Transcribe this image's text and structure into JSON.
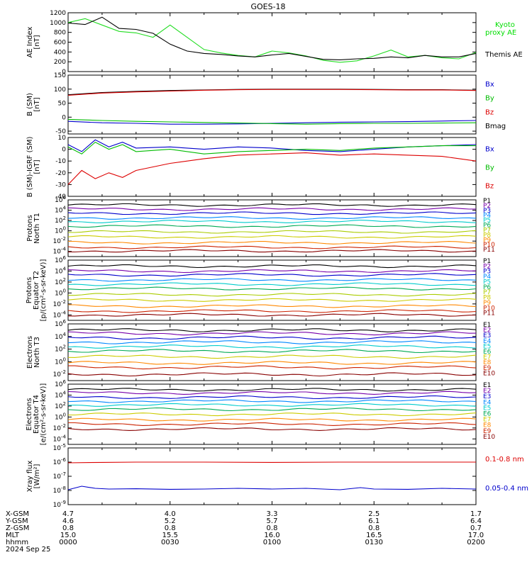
{
  "title": "GOES-18",
  "chart_data": [
    {
      "id": "ae",
      "type": "line",
      "ylabel": [
        "AE Index",
        "[nT]"
      ],
      "ylim": [
        0,
        1200
      ],
      "yticks": [
        "0",
        "200",
        "400",
        "600",
        "800",
        "1000",
        "1200"
      ],
      "ytick_values": [
        0,
        200,
        400,
        600,
        800,
        1000,
        1200
      ],
      "legend": [
        {
          "text": "Kyoto",
          "color": "#00dd00"
        },
        {
          "text": "proxy AE",
          "color": "#00dd00"
        },
        {
          "text": "Themis AE",
          "color": "#000000"
        }
      ],
      "series": [
        {
          "name": "Kyoto proxy AE",
          "color": "#22dd22",
          "x": [
            0,
            5,
            10,
            15,
            20,
            25,
            30,
            35,
            40,
            45,
            50,
            55,
            60,
            65,
            70,
            75,
            80,
            85,
            90,
            95,
            100,
            105,
            110,
            115,
            120
          ],
          "y": [
            1000,
            1080,
            950,
            820,
            790,
            700,
            950,
            700,
            450,
            380,
            330,
            300,
            420,
            380,
            320,
            230,
            190,
            220,
            320,
            440,
            300,
            330,
            280,
            260,
            390
          ]
        },
        {
          "name": "Themis AE",
          "color": "#000000",
          "x": [
            0,
            5,
            10,
            15,
            20,
            25,
            30,
            35,
            40,
            45,
            50,
            55,
            60,
            65,
            70,
            75,
            80,
            85,
            90,
            95,
            100,
            105,
            110,
            115,
            120
          ],
          "y": [
            990,
            960,
            1110,
            880,
            860,
            780,
            560,
            420,
            370,
            350,
            320,
            300,
            340,
            370,
            310,
            250,
            240,
            260,
            270,
            300,
            280,
            330,
            300,
            300,
            370
          ]
        }
      ]
    },
    {
      "id": "bsm",
      "type": "line",
      "ylabel": [
        "B (SM)",
        "[nT]"
      ],
      "ylim": [
        -60,
        150
      ],
      "yticks": [
        "-50",
        "0",
        "50",
        "100",
        "150"
      ],
      "ytick_values": [
        -50,
        0,
        50,
        100,
        150
      ],
      "legend": [
        {
          "text": "Bx",
          "color": "#0000cc"
        },
        {
          "text": "By",
          "color": "#00bb00"
        },
        {
          "text": "Bz",
          "color": "#dd0000"
        },
        {
          "text": "Bmag",
          "color": "#000000"
        }
      ],
      "series": [
        {
          "name": "Bmag",
          "color": "#000000",
          "x": [
            0,
            10,
            20,
            30,
            40,
            50,
            60,
            70,
            80,
            90,
            100,
            110,
            120
          ],
          "y": [
            80,
            88,
            92,
            95,
            97,
            99,
            100,
            100,
            100,
            99,
            98,
            98,
            96
          ]
        },
        {
          "name": "Bz",
          "color": "#dd0000",
          "x": [
            0,
            10,
            20,
            30,
            40,
            50,
            60,
            70,
            80,
            90,
            100,
            110,
            120
          ],
          "y": [
            78,
            86,
            90,
            93,
            96,
            98,
            99,
            99,
            99,
            98,
            97,
            97,
            95
          ]
        },
        {
          "name": "Bx",
          "color": "#0000cc",
          "x": [
            0,
            10,
            20,
            30,
            40,
            50,
            60,
            70,
            80,
            90,
            100,
            110,
            120
          ],
          "y": [
            -15,
            -20,
            -22,
            -25,
            -25,
            -24,
            -22,
            -20,
            -18,
            -17,
            -16,
            -14,
            -12
          ]
        },
        {
          "name": "By",
          "color": "#00bb00",
          "x": [
            0,
            10,
            20,
            30,
            40,
            50,
            60,
            70,
            80,
            90,
            100,
            110,
            120
          ],
          "y": [
            -8,
            -12,
            -15,
            -17,
            -19,
            -21,
            -23,
            -25,
            -23,
            -22,
            -22,
            -21,
            -20
          ]
        }
      ]
    },
    {
      "id": "bdiff",
      "type": "line",
      "ylabel": [
        "B (SM)-IGRF (SM)",
        "[nT]"
      ],
      "ylim": [
        -40,
        10
      ],
      "yticks": [
        "-40",
        "-30",
        "-20",
        "-10",
        "0",
        "10"
      ],
      "ytick_values": [
        -40,
        -30,
        -20,
        -10,
        0,
        10
      ],
      "legend": [
        {
          "text": "Bx",
          "color": "#0000cc"
        },
        {
          "text": "By",
          "color": "#00bb00"
        },
        {
          "text": "Bz",
          "color": "#dd0000"
        }
      ],
      "series": [
        {
          "name": "Bx",
          "color": "#0000cc",
          "x": [
            0,
            4,
            8,
            12,
            16,
            20,
            30,
            40,
            50,
            60,
            70,
            80,
            90,
            100,
            110,
            120
          ],
          "y": [
            4,
            -2,
            8,
            2,
            6,
            1,
            2,
            0,
            2,
            1,
            -1,
            -2,
            0,
            2,
            3,
            4
          ]
        },
        {
          "name": "By",
          "color": "#00bb00",
          "x": [
            0,
            4,
            8,
            12,
            16,
            20,
            30,
            40,
            50,
            60,
            70,
            80,
            90,
            100,
            110,
            120
          ],
          "y": [
            2,
            -4,
            6,
            0,
            4,
            -2,
            0,
            -4,
            -2,
            -1,
            0,
            -1,
            1,
            2,
            3,
            3
          ]
        },
        {
          "name": "Bz",
          "color": "#dd0000",
          "x": [
            0,
            4,
            8,
            12,
            16,
            20,
            30,
            40,
            50,
            60,
            70,
            80,
            90,
            100,
            110,
            120
          ],
          "y": [
            -30,
            -18,
            -25,
            -20,
            -24,
            -18,
            -12,
            -8,
            -5,
            -4,
            -3,
            -5,
            -4,
            -5,
            -6,
            -10
          ]
        }
      ]
    },
    {
      "id": "pro_n",
      "type": "line",
      "scale": "log",
      "ylabel": [
        "Protons",
        "North T1"
      ],
      "ylim_exp": [
        -5,
        6
      ],
      "yticks": [
        "10^6",
        "10^4",
        "10^2",
        "10^0",
        "10^-2",
        "10^-4"
      ],
      "ytick_values": [
        6,
        4,
        2,
        0,
        -2,
        -4
      ],
      "legend": [
        {
          "text": "P1",
          "color": "#000000"
        },
        {
          "text": "P2",
          "color": "#7700aa"
        },
        {
          "text": "P3",
          "color": "#0000cc"
        },
        {
          "text": "P4",
          "color": "#0088ff"
        },
        {
          "text": "P5",
          "color": "#00cccc"
        },
        {
          "text": "P6",
          "color": "#00aa55"
        },
        {
          "text": "P7",
          "color": "#aacc00"
        },
        {
          "text": "P8",
          "color": "#cccc00"
        },
        {
          "text": "P9",
          "color": "#ff8800"
        },
        {
          "text": "P10",
          "color": "#cc2200"
        },
        {
          "text": "P11",
          "color": "#880000"
        }
      ],
      "series": [
        {
          "name": "P1",
          "color": "#000000",
          "level": 5.0
        },
        {
          "name": "P2",
          "color": "#7700aa",
          "level": 4.2
        },
        {
          "name": "P3",
          "color": "#0000cc",
          "level": 3.4
        },
        {
          "name": "P4",
          "color": "#0088ff",
          "level": 2.5
        },
        {
          "name": "P5",
          "color": "#00cccc",
          "level": 1.8
        },
        {
          "name": "P6",
          "color": "#00aa55",
          "level": 0.9
        },
        {
          "name": "P7",
          "color": "#aacc00",
          "level": -0.2
        },
        {
          "name": "P8",
          "color": "#cccc00",
          "level": -1.2
        },
        {
          "name": "P9",
          "color": "#ff8800",
          "level": -2.3
        },
        {
          "name": "P10",
          "color": "#cc2200",
          "level": -3.2
        },
        {
          "name": "P11",
          "color": "#880000",
          "level": -3.9
        }
      ]
    },
    {
      "id": "pro_e",
      "type": "line",
      "scale": "log",
      "ylabel": [
        "Protons",
        "Equator T2",
        "[p/(cm²-s-sr-keV)]"
      ],
      "ylim_exp": [
        -5,
        6
      ],
      "yticks": [
        "10^6",
        "10^4",
        "10^2",
        "10^0",
        "10^-2",
        "10^-4"
      ],
      "ytick_values": [
        6,
        4,
        2,
        0,
        -2,
        -4
      ],
      "legend": [
        {
          "text": "P1",
          "color": "#000000"
        },
        {
          "text": "P2",
          "color": "#7700aa"
        },
        {
          "text": "P3",
          "color": "#0000cc"
        },
        {
          "text": "P4",
          "color": "#0088ff"
        },
        {
          "text": "P5",
          "color": "#00cccc"
        },
        {
          "text": "P6",
          "color": "#00aa55"
        },
        {
          "text": "P7",
          "color": "#aacc00"
        },
        {
          "text": "P8",
          "color": "#cccc00"
        },
        {
          "text": "P9",
          "color": "#ff8800"
        },
        {
          "text": "P10",
          "color": "#cc2200"
        },
        {
          "text": "P11",
          "color": "#880000"
        }
      ],
      "series": [
        {
          "name": "P1",
          "color": "#000000",
          "level": 4.9
        },
        {
          "name": "P2",
          "color": "#7700aa",
          "level": 4.0
        },
        {
          "name": "P3",
          "color": "#0000cc",
          "level": 3.3
        },
        {
          "name": "P4",
          "color": "#0088ff",
          "level": 2.4
        },
        {
          "name": "P5",
          "color": "#00cccc",
          "level": 1.6
        },
        {
          "name": "P6",
          "color": "#00aa55",
          "level": 0.8
        },
        {
          "name": "P7",
          "color": "#aacc00",
          "level": -0.3
        },
        {
          "name": "P8",
          "color": "#cccc00",
          "level": -1.3
        },
        {
          "name": "P9",
          "color": "#ff8800",
          "level": -2.4
        },
        {
          "name": "P10",
          "color": "#cc2200",
          "level": -3.3
        },
        {
          "name": "P11",
          "color": "#880000",
          "level": -4.0
        }
      ]
    },
    {
      "id": "ele_n",
      "type": "line",
      "scale": "log",
      "ylabel": [
        "Electrons",
        "North T3"
      ],
      "ylim_exp": [
        -3,
        6
      ],
      "yticks": [
        "10^6",
        "10^4",
        "10^2",
        "10^0",
        "10^-2"
      ],
      "ytick_values": [
        6,
        4,
        2,
        0,
        -2
      ],
      "legend": [
        {
          "text": "E1",
          "color": "#000000"
        },
        {
          "text": "E2",
          "color": "#7700aa"
        },
        {
          "text": "E3",
          "color": "#0000cc"
        },
        {
          "text": "E4",
          "color": "#0088ff"
        },
        {
          "text": "E5",
          "color": "#00cccc"
        },
        {
          "text": "E6",
          "color": "#00aa55"
        },
        {
          "text": "E7",
          "color": "#cccc00"
        },
        {
          "text": "E8",
          "color": "#ff8800"
        },
        {
          "text": "E9",
          "color": "#cc2200"
        },
        {
          "text": "E10",
          "color": "#880000"
        }
      ],
      "series": [
        {
          "name": "E1",
          "color": "#000000",
          "level": 5.0
        },
        {
          "name": "E2",
          "color": "#7700aa",
          "level": 4.5
        },
        {
          "name": "E3",
          "color": "#0000cc",
          "level": 3.8
        },
        {
          "name": "E4",
          "color": "#0088ff",
          "level": 3.1
        },
        {
          "name": "E5",
          "color": "#00cccc",
          "level": 2.4
        },
        {
          "name": "E6",
          "color": "#00aa55",
          "level": 1.7
        },
        {
          "name": "E7",
          "color": "#cccc00",
          "level": 0.8
        },
        {
          "name": "E8",
          "color": "#ff8800",
          "level": -0.2
        },
        {
          "name": "E9",
          "color": "#cc2200",
          "level": -0.9
        },
        {
          "name": "E10",
          "color": "#880000",
          "level": -2.0
        }
      ]
    },
    {
      "id": "ele_e",
      "type": "line",
      "scale": "log",
      "ylabel": [
        "Electrons",
        "Equator T4",
        "[e/(cm²-s-sr-keV)]"
      ],
      "ylim_exp": [
        -5,
        6
      ],
      "yticks": [
        "10^6",
        "10^4",
        "10^2",
        "10^0",
        "10^-2",
        "10^-4"
      ],
      "ytick_values": [
        6,
        4,
        2,
        0,
        -2,
        -4
      ],
      "legend": [
        {
          "text": "E1",
          "color": "#000000"
        },
        {
          "text": "E2",
          "color": "#7700aa"
        },
        {
          "text": "E3",
          "color": "#0000cc"
        },
        {
          "text": "E4",
          "color": "#0088ff"
        },
        {
          "text": "E5",
          "color": "#00cccc"
        },
        {
          "text": "E6",
          "color": "#00aa55"
        },
        {
          "text": "E7",
          "color": "#cccc00"
        },
        {
          "text": "E8",
          "color": "#ff8800"
        },
        {
          "text": "E9",
          "color": "#cc2200"
        },
        {
          "text": "E10",
          "color": "#880000"
        }
      ],
      "series": [
        {
          "name": "E1",
          "color": "#000000",
          "level": 5.0
        },
        {
          "name": "E2",
          "color": "#7700aa",
          "level": 4.4
        },
        {
          "name": "E3",
          "color": "#0000cc",
          "level": 3.6
        },
        {
          "name": "E4",
          "color": "#0088ff",
          "level": 2.9
        },
        {
          "name": "E5",
          "color": "#00cccc",
          "level": 2.2
        },
        {
          "name": "E6",
          "color": "#00aa55",
          "level": 1.4
        },
        {
          "name": "E7",
          "color": "#cccc00",
          "level": 0.5
        },
        {
          "name": "E8",
          "color": "#ff8800",
          "level": -0.5
        },
        {
          "name": "E9",
          "color": "#cc2200",
          "level": -1.3
        },
        {
          "name": "E10",
          "color": "#880000",
          "level": -2.2
        }
      ]
    },
    {
      "id": "xray",
      "type": "line",
      "scale": "log",
      "ylabel": [
        "Xray flux",
        "[W/m²]"
      ],
      "ylim_exp": [
        -9,
        -5
      ],
      "yticks": [
        "10^-5",
        "10^-6",
        "10^-7",
        "10^-8",
        "10^-9"
      ],
      "ytick_values": [
        -5,
        -6,
        -7,
        -8,
        -9
      ],
      "legend": [
        {
          "text": "0.1-0.8 nm",
          "color": "#dd0000"
        },
        {
          "text": "0.05-0.4 nm",
          "color": "#0000cc"
        }
      ],
      "series": [
        {
          "name": "0.1-0.8 nm",
          "color": "#dd0000",
          "x": [
            0,
            10,
            20,
            40,
            60,
            80,
            100,
            120
          ],
          "y": [
            -6.05,
            -6.02,
            -6.0,
            -6.0,
            -6.02,
            -6.0,
            -6.0,
            -6.0
          ]
        },
        {
          "name": "0.05-0.4 nm",
          "color": "#0000cc",
          "x": [
            0,
            4,
            8,
            12,
            20,
            30,
            40,
            50,
            60,
            70,
            80,
            86,
            90,
            100,
            110,
            120
          ],
          "y": [
            -7.95,
            -7.7,
            -7.85,
            -7.9,
            -7.88,
            -7.92,
            -7.9,
            -7.85,
            -7.9,
            -7.85,
            -7.95,
            -7.8,
            -7.9,
            -7.92,
            -7.85,
            -7.9
          ]
        }
      ]
    }
  ],
  "footer": {
    "row_labels": [
      "X-GSM",
      "Y-GSM",
      "Z-GSM",
      "MLT",
      "hhmm"
    ],
    "date": "2024 Sep 25",
    "columns": [
      [
        "4.7",
        "4.6",
        "0.8",
        "15.0",
        "0000"
      ],
      [
        "4.0",
        "5.2",
        "0.8",
        "15.5",
        "0030"
      ],
      [
        "3.3",
        "5.7",
        "0.8",
        "16.0",
        "0100"
      ],
      [
        "2.5",
        "6.1",
        "0.8",
        "16.5",
        "0130"
      ],
      [
        "1.7",
        "6.4",
        "0.7",
        "17.0",
        "0200"
      ]
    ]
  }
}
